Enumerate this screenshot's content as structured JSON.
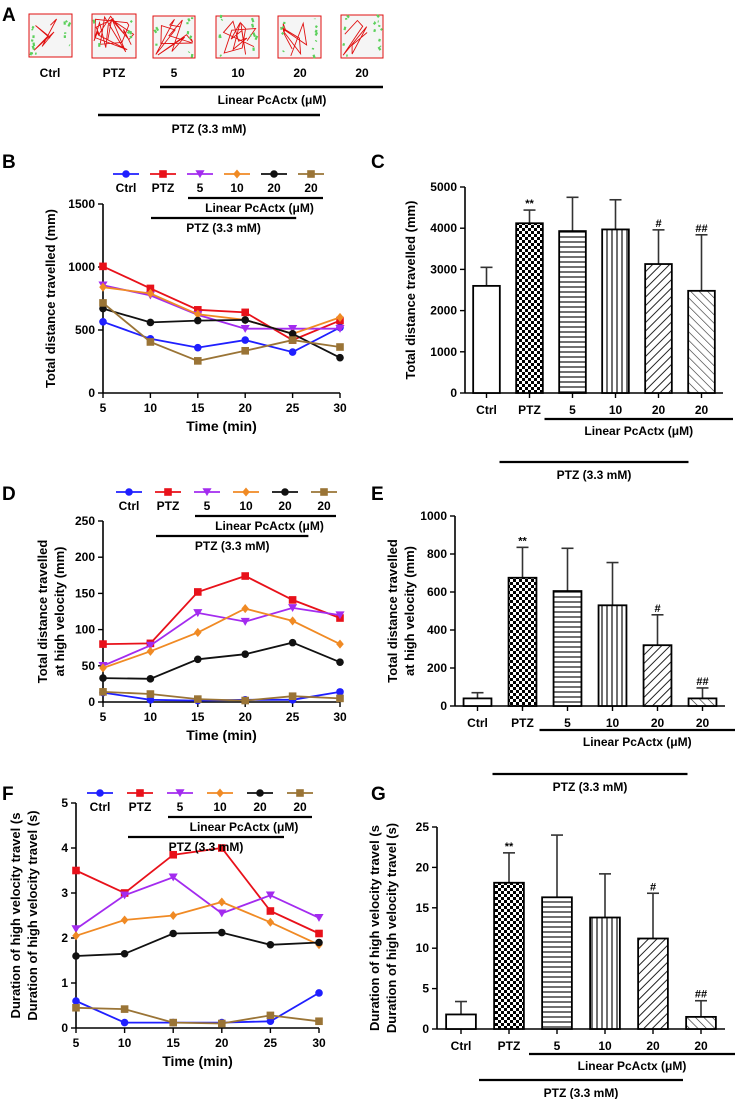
{
  "panel_labels": {
    "A": "A",
    "B": "B",
    "C": "C",
    "D": "D",
    "E": "E",
    "F": "F",
    "G": "G"
  },
  "colors": {
    "Ctrl": "#1f1fff",
    "PTZ": "#e8111a",
    "PcActx5": "#a32bef",
    "PcActx10": "#f08a24",
    "PcActx20": "#111111",
    "PcActx20b": "#9a7436",
    "track_red": "#e01010",
    "track_green": "#5cd05c"
  },
  "groups": [
    "Ctrl",
    "PTZ",
    "5",
    "10",
    "20",
    "20"
  ],
  "linear_label": "Linear PcActx (μM)",
  "ptz_label": "PTZ (3.3 mM)",
  "sig_symbols": [
    "",
    "**",
    "",
    "",
    "#",
    "##"
  ],
  "trackplots": [
    {
      "group": "Ctrl",
      "activity": 0.15
    },
    {
      "group": "PTZ",
      "activity": 1.0
    },
    {
      "group": "5",
      "activity": 0.6
    },
    {
      "group": "10",
      "activity": 0.55
    },
    {
      "group": "20",
      "activity": 0.4
    },
    {
      "group": "20",
      "activity": 0.15
    }
  ],
  "chart_data": [
    {
      "panel": "B",
      "type": "line",
      "xlabel": "Time (min)",
      "ylabel": "Total distance travelled (mm)",
      "x": [
        5,
        10,
        15,
        20,
        25,
        30
      ],
      "xlim": [
        5,
        30
      ],
      "ylim": [
        0,
        1500
      ],
      "yticks": [
        0,
        500,
        1000,
        1500
      ],
      "series": [
        {
          "name": "Ctrl",
          "marker": "circle",
          "values": [
            565,
            430,
            360,
            420,
            325,
            520
          ]
        },
        {
          "name": "PTZ",
          "marker": "square",
          "values": [
            1005,
            830,
            660,
            640,
            420,
            575
          ]
        },
        {
          "name": "5",
          "marker": "triangle-down",
          "values": [
            855,
            775,
            620,
            510,
            510,
            510
          ]
        },
        {
          "name": "10",
          "marker": "diamond",
          "values": [
            840,
            790,
            625,
            580,
            470,
            600
          ]
        },
        {
          "name": "20",
          "marker": "circle",
          "values": [
            670,
            560,
            575,
            580,
            470,
            280
          ]
        },
        {
          "name": "20",
          "marker": "square",
          "values": [
            715,
            405,
            255,
            335,
            420,
            365
          ]
        }
      ]
    },
    {
      "panel": "C",
      "type": "bar",
      "ylabel": "Total distance travelled (mm)",
      "categories": [
        "Ctrl",
        "PTZ",
        "5",
        "10",
        "20",
        "20"
      ],
      "values": [
        2600,
        4120,
        3930,
        3970,
        3130,
        2480
      ],
      "errors": [
        450,
        320,
        820,
        720,
        830,
        1360
      ],
      "ylim": [
        0,
        5000
      ],
      "yticks": [
        0,
        1000,
        2000,
        3000,
        4000,
        5000
      ]
    },
    {
      "panel": "D",
      "type": "line",
      "xlabel": "Time (min)",
      "ylabel": "Total distance travelled at high velocity (mm)",
      "x": [
        5,
        10,
        15,
        20,
        25,
        30
      ],
      "xlim": [
        5,
        30
      ],
      "ylim": [
        0,
        250
      ],
      "yticks": [
        0,
        50,
        100,
        150,
        200,
        250
      ],
      "series": [
        {
          "name": "Ctrl",
          "marker": "circle",
          "values": [
            13,
            3,
            2,
            3,
            3,
            14
          ]
        },
        {
          "name": "PTZ",
          "marker": "square",
          "values": [
            80,
            81,
            152,
            174,
            141,
            116
          ]
        },
        {
          "name": "5",
          "marker": "triangle-down",
          "values": [
            50,
            78,
            123,
            111,
            130,
            120
          ]
        },
        {
          "name": "10",
          "marker": "diamond",
          "values": [
            47,
            70,
            96,
            129,
            112,
            80
          ]
        },
        {
          "name": "20",
          "marker": "circle",
          "values": [
            33,
            32,
            59,
            66,
            82,
            55
          ]
        },
        {
          "name": "20",
          "marker": "square",
          "values": [
            14,
            11,
            4,
            2,
            8,
            5
          ]
        }
      ]
    },
    {
      "panel": "E",
      "type": "bar",
      "ylabel": "Total distance travelled at high velocity (mm)",
      "categories": [
        "Ctrl",
        "PTZ",
        "5",
        "10",
        "20",
        "20"
      ],
      "values": [
        40,
        675,
        605,
        530,
        320,
        40
      ],
      "errors": [
        30,
        160,
        225,
        225,
        160,
        55
      ],
      "ylim": [
        0,
        1000
      ],
      "yticks": [
        0,
        200,
        400,
        600,
        800,
        1000
      ]
    },
    {
      "panel": "F",
      "type": "line",
      "xlabel": "Time (min)",
      "ylabel": "Duration of high velocity travel (s)",
      "x": [
        5,
        10,
        15,
        20,
        25,
        30
      ],
      "xlim": [
        5,
        30
      ],
      "ylim": [
        0,
        5
      ],
      "yticks": [
        0,
        1,
        2,
        3,
        4,
        5
      ],
      "series": [
        {
          "name": "Ctrl",
          "marker": "circle",
          "values": [
            0.6,
            0.12,
            0.12,
            0.12,
            0.15,
            0.78
          ]
        },
        {
          "name": "PTZ",
          "marker": "square",
          "values": [
            3.5,
            3.0,
            3.85,
            4.0,
            2.6,
            2.1
          ]
        },
        {
          "name": "5",
          "marker": "triangle-down",
          "values": [
            2.2,
            2.95,
            3.35,
            2.55,
            2.95,
            2.45
          ]
        },
        {
          "name": "10",
          "marker": "diamond",
          "values": [
            2.05,
            2.4,
            2.5,
            2.8,
            2.35,
            1.85
          ]
        },
        {
          "name": "20",
          "marker": "circle",
          "values": [
            1.6,
            1.65,
            2.1,
            2.12,
            1.85,
            1.9
          ]
        },
        {
          "name": "20",
          "marker": "square",
          "values": [
            0.45,
            0.42,
            0.12,
            0.1,
            0.28,
            0.15
          ]
        }
      ]
    },
    {
      "panel": "G",
      "type": "bar",
      "ylabel": "Duration of high velocity travel (s)",
      "categories": [
        "Ctrl",
        "PTZ",
        "5",
        "10",
        "20",
        "20"
      ],
      "values": [
        1.8,
        18.1,
        16.3,
        13.8,
        11.2,
        1.5
      ],
      "errors": [
        1.6,
        3.7,
        7.7,
        5.4,
        5.6,
        2.0
      ],
      "ylim": [
        0,
        25
      ],
      "yticks": [
        0,
        5,
        10,
        15,
        20,
        25
      ]
    }
  ]
}
